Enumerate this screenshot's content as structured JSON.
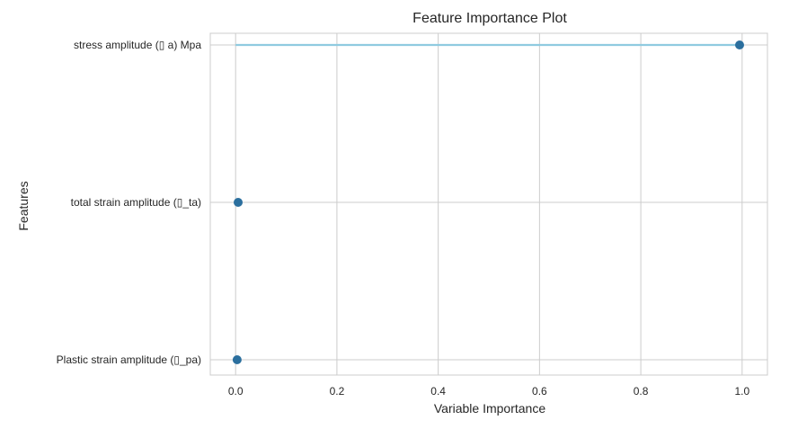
{
  "chart_data": {
    "type": "scatter",
    "title": "Feature Importance Plot",
    "xlabel": "Variable Importance",
    "ylabel": "Features",
    "xlim": [
      -0.05,
      1.05
    ],
    "xticks": [
      0.0,
      0.2,
      0.4,
      0.6,
      0.8,
      1.0
    ],
    "xtick_labels": [
      "0.0",
      "0.2",
      "0.4",
      "0.6",
      "0.8",
      "1.0"
    ],
    "grid": true,
    "legend": "none",
    "categories": [
      "stress amplitude (▯ a) Mpa",
      "total strain amplitude (▯_ta)",
      "Plastic strain amplitude (▯_pa)"
    ],
    "values": [
      0.995,
      0.005,
      0.003
    ],
    "colors": {
      "stem": "#8fcbe0",
      "point": "#2b6f9e",
      "grid": "#cccccc"
    }
  }
}
